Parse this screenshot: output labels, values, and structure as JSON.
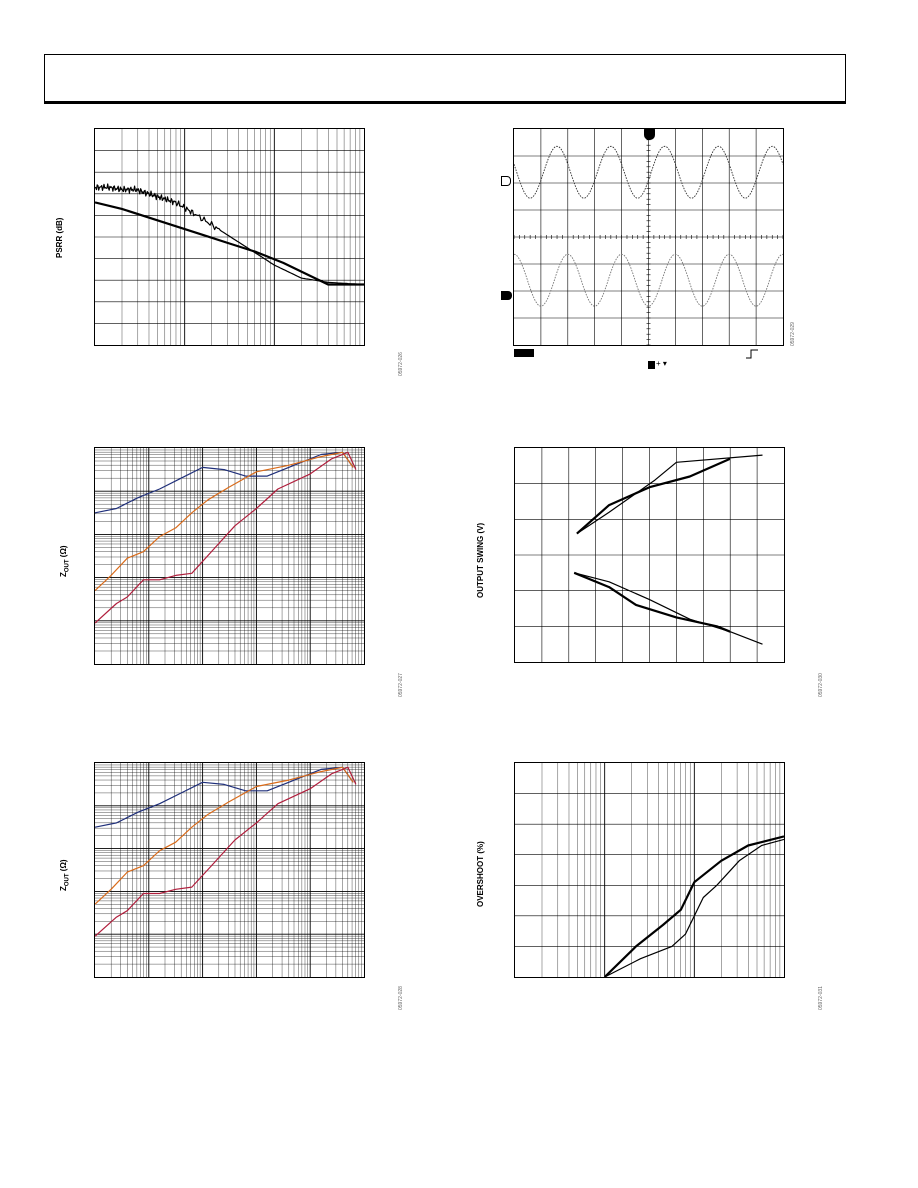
{
  "header": {
    "title": ""
  },
  "chart_data": [
    {
      "id": "psrr",
      "type": "line",
      "ylabel": "PSRR (dB)",
      "xscale": "log",
      "xdecades": 3,
      "ydivisions": 10,
      "ylim": [
        0,
        100
      ],
      "grid": true,
      "series": [
        {
          "color": "#000000",
          "width": 1.2,
          "noise": true,
          "values": [
            [
              0,
              73
            ],
            [
              0.15,
              73
            ],
            [
              0.3,
              72
            ],
            [
              0.45,
              72
            ],
            [
              0.6,
              70
            ],
            [
              0.75,
              68
            ],
            [
              0.9,
              66
            ],
            [
              1.1,
              61
            ],
            [
              1.4,
              53
            ],
            [
              1.7,
              45
            ],
            [
              2.0,
              37
            ],
            [
              2.3,
              31
            ],
            [
              2.6,
              29
            ],
            [
              3.0,
              28
            ]
          ]
        },
        {
          "color": "#000000",
          "width": 2.2,
          "noise": false,
          "values": [
            [
              0,
              66
            ],
            [
              0.3,
              63
            ],
            [
              0.6,
              59
            ],
            [
              0.9,
              55
            ],
            [
              1.2,
              51
            ],
            [
              1.5,
              47
            ],
            [
              1.8,
              43
            ],
            [
              2.1,
              38
            ],
            [
              2.4,
              32
            ],
            [
              2.6,
              28
            ],
            [
              2.8,
              28
            ],
            [
              3.0,
              28
            ]
          ]
        }
      ],
      "fig_id": "05972-026"
    },
    {
      "id": "scope",
      "type": "line",
      "scope": true,
      "xdivisions": 10,
      "ydivisions": 8,
      "grid": true,
      "series": [
        {
          "name": "",
          "color": "#333333",
          "width": 0.9,
          "dashed": true,
          "cycles": 5,
          "phase": 0.9,
          "center": 0.2,
          "amp": 0.12
        },
        {
          "name": "",
          "color": "#777777",
          "width": 0.9,
          "dashed": true,
          "cycles": 5,
          "phase": 0.5,
          "center": 0.7,
          "amp": 0.12
        }
      ],
      "fig_id": "05972-029"
    },
    {
      "id": "zout1",
      "type": "line",
      "ylabel": "ZOUT (Ω)",
      "xscale": "log",
      "yscale": "log",
      "xdecades": 5,
      "ydecades": 5,
      "grid": true,
      "series": [
        {
          "color": "#1f2f7a",
          "width": 1.2,
          "values": [
            [
              0,
              3.5
            ],
            [
              0.4,
              3.6
            ],
            [
              0.8,
              3.85
            ],
            [
              1.2,
              4.05
            ],
            [
              1.6,
              4.3
            ],
            [
              2.0,
              4.55
            ],
            [
              2.4,
              4.5
            ],
            [
              2.8,
              4.35
            ],
            [
              3.2,
              4.35
            ],
            [
              3.6,
              4.55
            ],
            [
              4.2,
              4.85
            ],
            [
              4.6,
              4.9
            ],
            [
              4.8,
              4.55
            ]
          ]
        },
        {
          "color": "#d96b1a",
          "width": 1.2,
          "values": [
            [
              0,
              1.7
            ],
            [
              0.3,
              2.05
            ],
            [
              0.6,
              2.45
            ],
            [
              0.9,
              2.6
            ],
            [
              1.2,
              2.95
            ],
            [
              1.5,
              3.15
            ],
            [
              1.8,
              3.5
            ],
            [
              2.1,
              3.8
            ],
            [
              2.5,
              4.1
            ],
            [
              3.0,
              4.45
            ],
            [
              3.6,
              4.6
            ],
            [
              4.2,
              4.8
            ],
            [
              4.6,
              4.9
            ],
            [
              4.8,
              4.55
            ]
          ]
        },
        {
          "color": "#b01e3c",
          "width": 1.2,
          "values": [
            [
              0,
              0.95
            ],
            [
              0.4,
              1.4
            ],
            [
              0.6,
              1.55
            ],
            [
              0.9,
              1.95
            ],
            [
              1.2,
              1.95
            ],
            [
              1.5,
              2.05
            ],
            [
              1.8,
              2.1
            ],
            [
              2.2,
              2.65
            ],
            [
              2.6,
              3.2
            ],
            [
              3.0,
              3.6
            ],
            [
              3.4,
              4.05
            ],
            [
              4.0,
              4.4
            ],
            [
              4.4,
              4.75
            ],
            [
              4.7,
              4.9
            ],
            [
              4.85,
              4.5
            ]
          ]
        }
      ],
      "fig_id": "05972-027"
    },
    {
      "id": "swing",
      "type": "line",
      "ylabel": "OUTPUT SWING (V)",
      "xdivisions": 10,
      "ydivisions": 6,
      "grid": true,
      "series": [
        {
          "color": "#000000",
          "width": 1.2,
          "values": [
            [
              2.3,
              3.6
            ],
            [
              3.5,
              4.2
            ],
            [
              5.2,
              5.1
            ],
            [
              6.0,
              5.6
            ],
            [
              9.2,
              5.8
            ]
          ]
        },
        {
          "color": "#000000",
          "width": 2.2,
          "values": [
            [
              2.3,
              3.6
            ],
            [
              3.5,
              4.4
            ],
            [
              5.0,
              4.9
            ],
            [
              6.5,
              5.2
            ],
            [
              8.0,
              5.7
            ]
          ]
        },
        {
          "color": "#000000",
          "width": 1.2,
          "values": [
            [
              2.2,
              2.5
            ],
            [
              3.5,
              2.25
            ],
            [
              5.0,
              1.75
            ],
            [
              6.5,
              1.2
            ],
            [
              8.0,
              0.85
            ],
            [
              9.2,
              0.5
            ]
          ]
        },
        {
          "color": "#000000",
          "width": 2.2,
          "values": [
            [
              2.2,
              2.5
            ],
            [
              3.5,
              2.1
            ],
            [
              4.5,
              1.6
            ],
            [
              6.0,
              1.25
            ],
            [
              7.5,
              1.0
            ],
            [
              8.0,
              0.85
            ]
          ]
        }
      ],
      "fig_id": "05972-030"
    },
    {
      "id": "zout2",
      "type": "line",
      "ylabel": "ZOUT (Ω)",
      "xscale": "log",
      "yscale": "log",
      "xdecades": 5,
      "ydecades": 5,
      "grid": true,
      "series": [
        {
          "color": "#1f2f7a",
          "width": 1.2,
          "values": [
            [
              0,
              3.5
            ],
            [
              0.4,
              3.6
            ],
            [
              0.8,
              3.85
            ],
            [
              1.2,
              4.05
            ],
            [
              1.6,
              4.3
            ],
            [
              2.0,
              4.55
            ],
            [
              2.4,
              4.5
            ],
            [
              2.8,
              4.35
            ],
            [
              3.2,
              4.35
            ],
            [
              3.6,
              4.55
            ],
            [
              4.2,
              4.85
            ],
            [
              4.6,
              4.9
            ],
            [
              4.8,
              4.55
            ]
          ]
        },
        {
          "color": "#d96b1a",
          "width": 1.2,
          "values": [
            [
              0,
              1.7
            ],
            [
              0.3,
              2.05
            ],
            [
              0.6,
              2.45
            ],
            [
              0.9,
              2.6
            ],
            [
              1.2,
              2.95
            ],
            [
              1.5,
              3.15
            ],
            [
              1.8,
              3.5
            ],
            [
              2.1,
              3.8
            ],
            [
              2.5,
              4.1
            ],
            [
              3.0,
              4.45
            ],
            [
              3.6,
              4.6
            ],
            [
              4.2,
              4.8
            ],
            [
              4.6,
              4.9
            ],
            [
              4.8,
              4.55
            ]
          ]
        },
        {
          "color": "#b01e3c",
          "width": 1.2,
          "values": [
            [
              0,
              0.95
            ],
            [
              0.4,
              1.4
            ],
            [
              0.6,
              1.55
            ],
            [
              0.9,
              1.95
            ],
            [
              1.2,
              1.95
            ],
            [
              1.5,
              2.05
            ],
            [
              1.8,
              2.1
            ],
            [
              2.2,
              2.65
            ],
            [
              2.6,
              3.2
            ],
            [
              3.0,
              3.6
            ],
            [
              3.4,
              4.05
            ],
            [
              4.0,
              4.4
            ],
            [
              4.4,
              4.75
            ],
            [
              4.7,
              4.9
            ],
            [
              4.85,
              4.5
            ]
          ]
        }
      ],
      "fig_id": "05972-028"
    },
    {
      "id": "overshoot",
      "type": "line",
      "ylabel": "OVERSHOOT (%)",
      "xscale": "log",
      "xdecades": 3,
      "ydivisions": 7,
      "ylim": [
        0,
        70
      ],
      "grid": true,
      "series": [
        {
          "color": "#000000",
          "width": 2.2,
          "values": [
            [
              1.0,
              0
            ],
            [
              1.35,
              10
            ],
            [
              1.65,
              17
            ],
            [
              1.85,
              22
            ],
            [
              2.0,
              31
            ],
            [
              2.3,
              38
            ],
            [
              2.6,
              43
            ],
            [
              3.0,
              46
            ]
          ]
        },
        {
          "color": "#000000",
          "width": 1.2,
          "values": [
            [
              1.0,
              0
            ],
            [
              1.4,
              6
            ],
            [
              1.75,
              10
            ],
            [
              1.9,
              14
            ],
            [
              2.1,
              26
            ],
            [
              2.25,
              30
            ],
            [
              2.5,
              38
            ],
            [
              2.75,
              43
            ],
            [
              3.0,
              45
            ]
          ]
        }
      ],
      "fig_id": "05972-031"
    }
  ]
}
